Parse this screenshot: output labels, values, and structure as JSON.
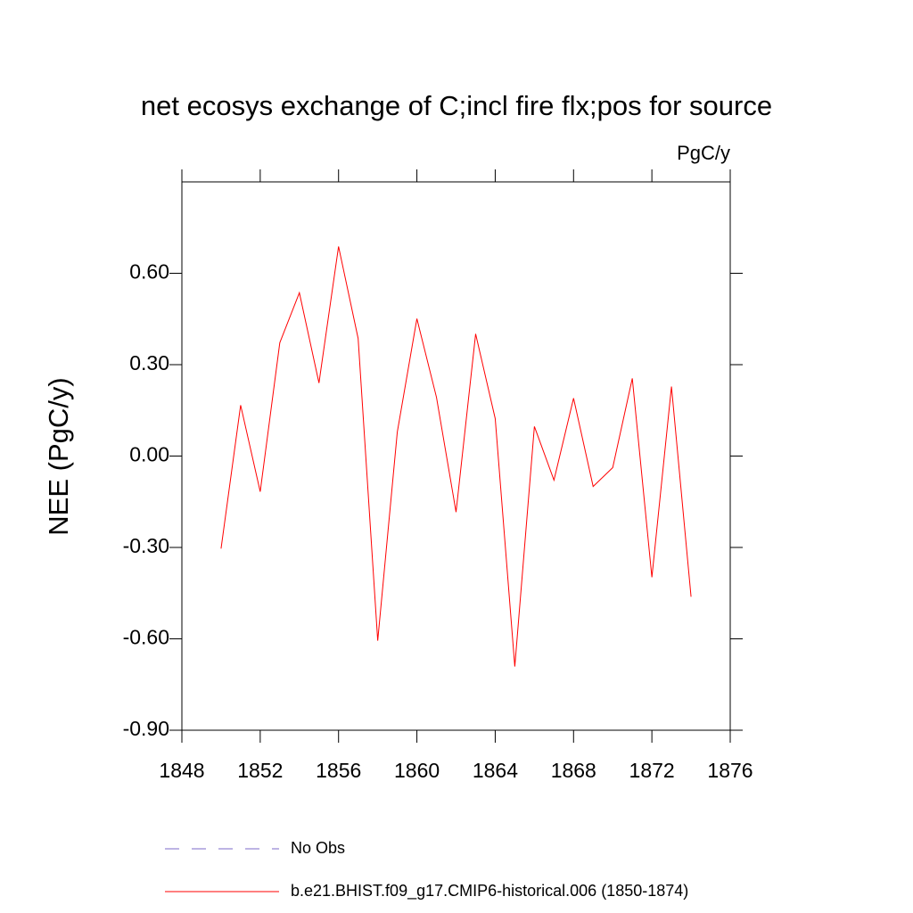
{
  "chart_data": {
    "type": "line",
    "title": "net ecosys exchange of C;incl fire flx;pos for source",
    "units": "PgC/y",
    "y_label": "NEE  (PgC/y)",
    "x": [
      1850,
      1851,
      1852,
      1853,
      1854,
      1855,
      1856,
      1857,
      1858,
      1859,
      1860,
      1861,
      1862,
      1863,
      1864,
      1865,
      1866,
      1867,
      1868,
      1869,
      1870,
      1871,
      1872,
      1873,
      1874
    ],
    "series": [
      {
        "name": "No Obs",
        "color": "#7b68c8",
        "dashed": true,
        "values": [
          null,
          null,
          null,
          null,
          null,
          null,
          null,
          null,
          null,
          null,
          null,
          null,
          null,
          null,
          null,
          null,
          null,
          null,
          null,
          null,
          null,
          null,
          null,
          null,
          null
        ]
      },
      {
        "name": "b.e21.BHIST.f09_g17.CMIP6-historical.006 (1850-1874)",
        "color": "#ff0000",
        "dashed": false,
        "values": [
          -0.304,
          0.167,
          -0.117,
          0.372,
          0.536,
          0.24,
          0.688,
          0.386,
          -0.606,
          0.079,
          0.451,
          0.193,
          -0.184,
          0.401,
          0.123,
          -0.691,
          0.097,
          -0.079,
          0.19,
          -0.1,
          -0.038,
          0.255,
          -0.398,
          0.228,
          -0.462
        ]
      }
    ],
    "xlim": [
      1848,
      1876
    ],
    "xticks": [
      1848,
      1852,
      1856,
      1860,
      1864,
      1868,
      1872,
      1876
    ],
    "ylim": [
      -0.9,
      0.9
    ],
    "yticks": [
      {
        "value": -0.9,
        "label": "-0.90"
      },
      {
        "value": -0.6,
        "label": "-0.60"
      },
      {
        "value": -0.3,
        "label": "-0.30"
      },
      {
        "value": 0,
        "label": "0.00"
      },
      {
        "value": 0.3,
        "label": "0.30"
      },
      {
        "value": 0.6,
        "label": "0.60"
      }
    ],
    "grid": false
  }
}
